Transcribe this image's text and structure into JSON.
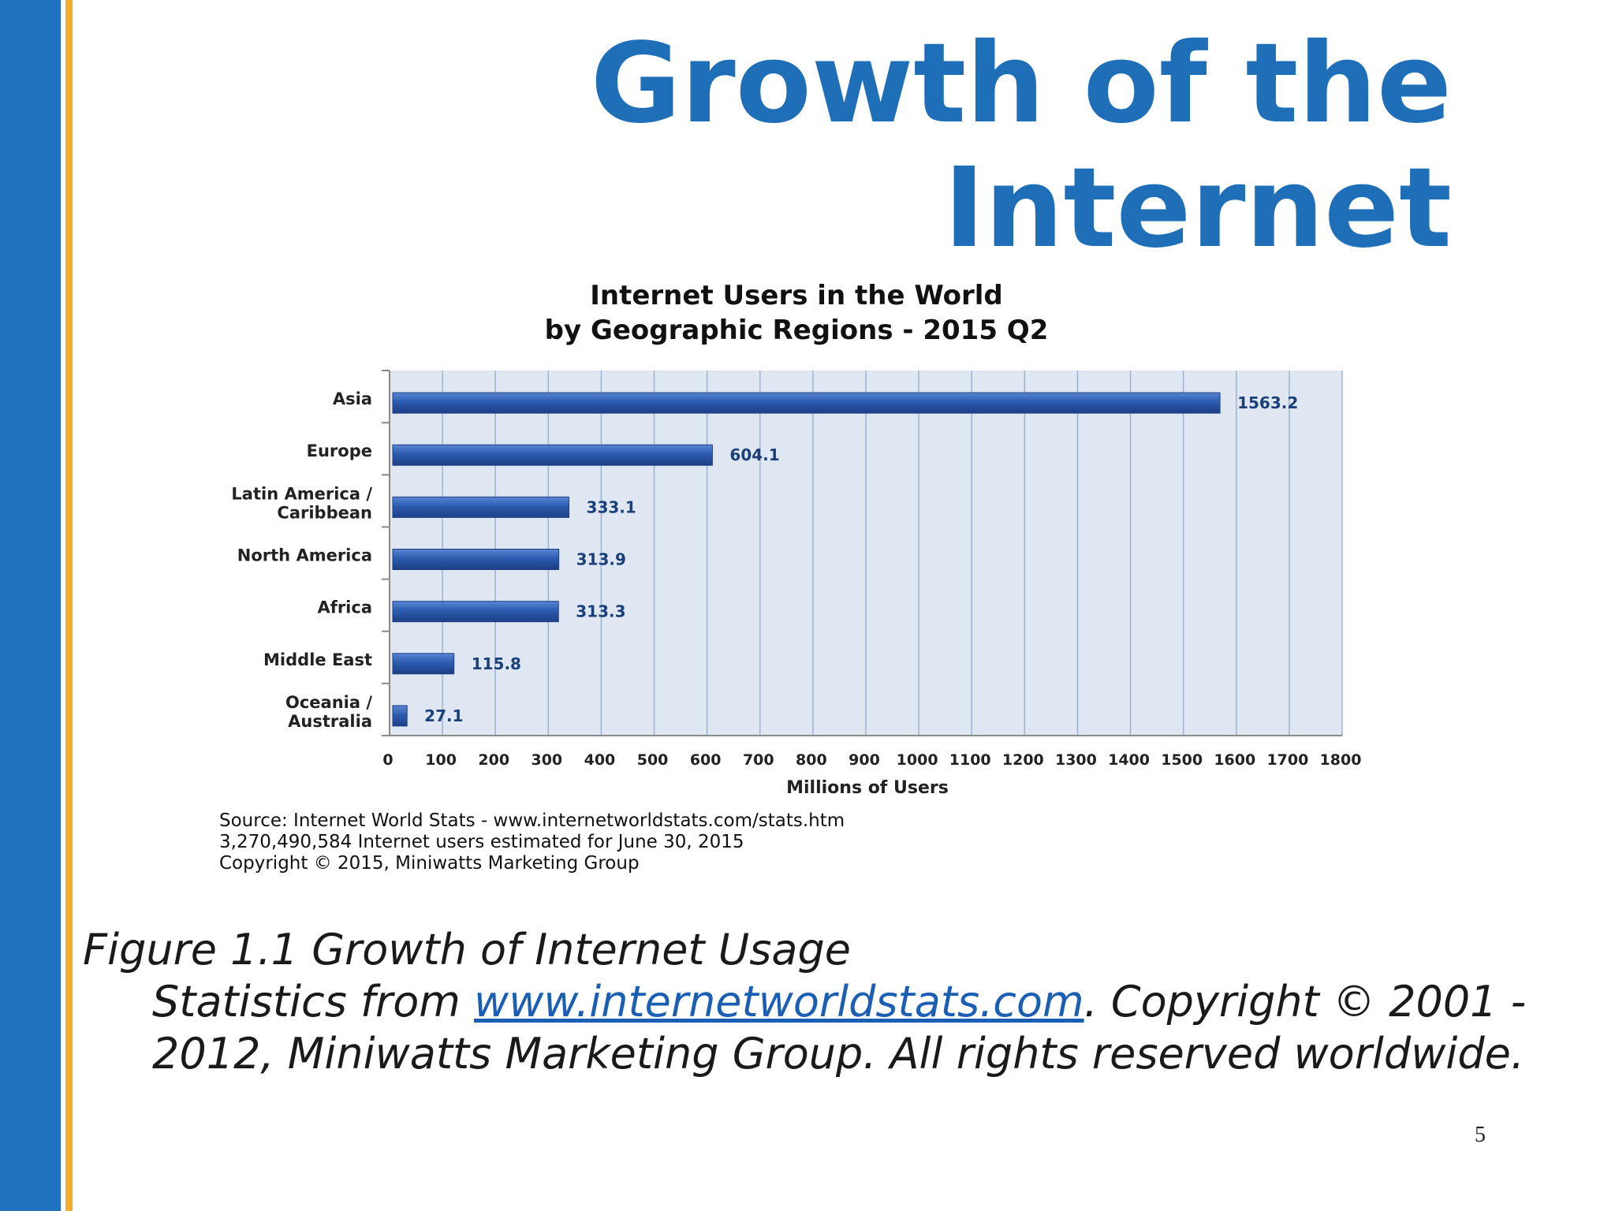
{
  "slide": {
    "title": "Growth of the Internet",
    "page_number": "5",
    "accent_color": "#1f72bd",
    "stripe_color": "#f2ad2c"
  },
  "caption": {
    "lead": "Figure 1.1 Growth of Internet Usage",
    "prefix": "Statistics from ",
    "link_text": "www.internetworldstats.com",
    "suffix": ". Copyright © 2001 - 2012, Miniwatts Marketing Group. All rights reserved worldwide."
  },
  "chart_data": {
    "type": "bar",
    "orientation": "horizontal",
    "title": [
      "Internet Users in the World",
      "by Geographic Regions - 2015 Q2"
    ],
    "categories": [
      [
        "Asia"
      ],
      [
        "Europe"
      ],
      [
        "Latin America /",
        "Caribbean"
      ],
      [
        "North America"
      ],
      [
        "Africa"
      ],
      [
        "Middle East"
      ],
      [
        "Oceania  /",
        "Australia"
      ]
    ],
    "values": [
      1563.2,
      604.1,
      333.1,
      313.9,
      313.3,
      115.8,
      27.1
    ],
    "value_labels": [
      "1563.2",
      "604.1",
      "333.1",
      "313.9",
      "313.3",
      "115.8",
      "27.1"
    ],
    "xlabel": "Millions of Users",
    "ylabel": "",
    "xlim": [
      0,
      1800
    ],
    "xticks": [
      0,
      100,
      200,
      300,
      400,
      500,
      600,
      700,
      800,
      900,
      1000,
      1100,
      1200,
      1300,
      1400,
      1500,
      1600,
      1700,
      1800
    ],
    "grid": true,
    "bar_color": "#2c5cb0",
    "plot_background": "#dfe7f2",
    "source_lines": [
      "Source: Internet World Stats - www.internetworldstats.com/stats.htm",
      "3,270,490,584 Internet users estimated for June 30, 2015",
      "Copyright © 2015, Miniwatts Marketing Group"
    ]
  }
}
